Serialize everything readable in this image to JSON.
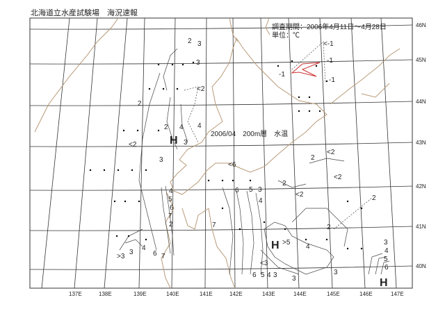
{
  "header": {
    "title": "北海道立水産試験場　海況速報"
  },
  "info": {
    "period": "調査期間：2006年4月11日～4月28日",
    "unit": "単位：℃"
  },
  "map": {
    "caption": "2006/04　200m層　水温",
    "lat_labels": [
      "46N",
      "45N",
      "44N",
      "43N",
      "42N",
      "41N",
      "40N"
    ],
    "lon_labels": [
      "137E",
      "138E",
      "139E",
      "140E",
      "141E",
      "142E",
      "143E",
      "144E",
      "145E",
      "146E",
      "147E"
    ],
    "contour_labels": [
      "2",
      "3",
      "3",
      "<2",
      "2",
      "2",
      "4",
      "3",
      "4",
      "<2",
      "3",
      "4",
      "5",
      "6",
      "7",
      "2",
      ">3",
      "3",
      "4",
      "6",
      "7",
      "<6",
      "6",
      "5",
      "3",
      "4",
      "7",
      "6",
      "5",
      "4",
      "3",
      "<3",
      "2",
      "2",
      "<2",
      "<2",
      "2",
      "H",
      ">5",
      "4",
      "3",
      "3",
      "<-1",
      "-1",
      "-1",
      "-1",
      "3",
      "4",
      "5",
      "6",
      "H",
      "H",
      "2",
      "<2"
    ],
    "colors": {
      "coast": "#b89a78",
      "grid": "#333333",
      "contour": "#444444",
      "red_contour": "#cc3333"
    }
  }
}
